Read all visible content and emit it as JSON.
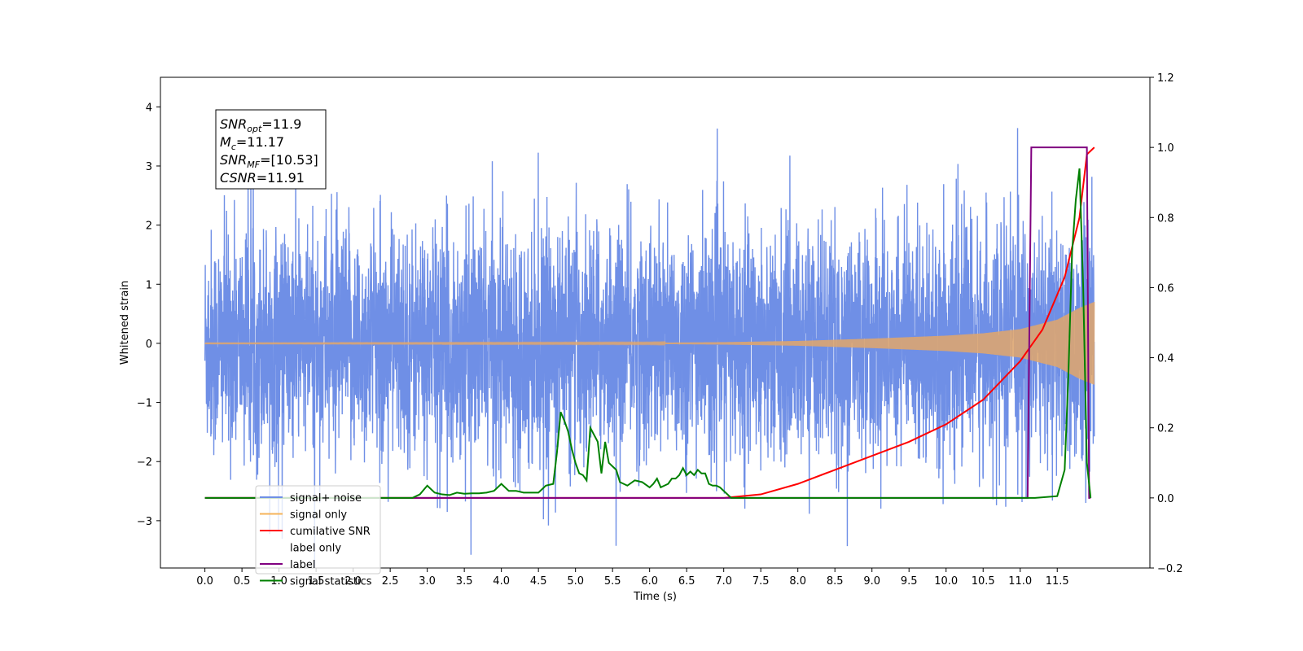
{
  "chart_data": {
    "type": "line",
    "title": "",
    "xlabel": "Time (s)",
    "ylabel": "Whitened strain",
    "y2label": "",
    "xlim": [
      -0.6,
      12.75
    ],
    "ylim": [
      -3.8,
      4.5
    ],
    "y2lim": [
      -0.2,
      1.2
    ],
    "xticks": [
      0.0,
      0.5,
      1.0,
      1.5,
      2.0,
      2.5,
      3.0,
      3.5,
      4.0,
      4.5,
      5.0,
      5.5,
      6.0,
      6.5,
      7.0,
      7.5,
      8.0,
      8.5,
      9.0,
      9.5,
      10.0,
      10.5,
      11.0,
      11.5
    ],
    "xtick_labels": [
      "0.0",
      "0.5",
      "1.0",
      "1.5",
      "2.0",
      "2.5",
      "3.0",
      "3.5",
      "4.0",
      "4.5",
      "5.0",
      "5.5",
      "6.0",
      "6.5",
      "7.0",
      "7.5",
      "8.0",
      "8.5",
      "9.0",
      "9.5",
      "10.0",
      "10.5",
      "11.0",
      "11.5"
    ],
    "yticks": [
      -3,
      -2,
      -1,
      0,
      1,
      2,
      3,
      4
    ],
    "ytick_labels": [
      "−3",
      "−2",
      "−1",
      "0",
      "1",
      "2",
      "3",
      "4"
    ],
    "y2ticks": [
      -0.2,
      0.0,
      0.2,
      0.4,
      0.6,
      0.8,
      1.0,
      1.2
    ],
    "y2tick_labels": [
      "−0.2",
      "0.0",
      "0.2",
      "0.4",
      "0.6",
      "0.8",
      "1.0",
      "1.2"
    ],
    "grid": false,
    "legend_position": "bottom-left",
    "annotation": [
      {
        "name": "SNR",
        "sub": "opt",
        "value": "=11.9"
      },
      {
        "name": "M",
        "sub": "c",
        "value": "=11.17"
      },
      {
        "name": "SNR",
        "sub": "MF",
        "value": "=[10.53]"
      },
      {
        "name": "CSNR",
        "sub": "",
        "value": "=11.91"
      }
    ],
    "series": [
      {
        "name": "signal+ noise",
        "axis": "left",
        "color": "#6f8fe6",
        "envelope": {
          "duration_s": 12.0,
          "noise_sigma": 0.95,
          "signal_amp_start": 0.005,
          "signal_amp_end": 0.7
        }
      },
      {
        "name": "signal only",
        "axis": "left",
        "color": "#f5b358",
        "envelope": {
          "duration_s": 12.0,
          "amp_points": [
            [
              0.0,
              0.005
            ],
            [
              6.0,
              0.01
            ],
            [
              7.0,
              0.02
            ],
            [
              8.0,
              0.04
            ],
            [
              9.0,
              0.08
            ],
            [
              10.0,
              0.13
            ],
            [
              10.5,
              0.17
            ],
            [
              11.0,
              0.24
            ],
            [
              11.5,
              0.4
            ],
            [
              11.8,
              0.6
            ],
            [
              12.0,
              0.7
            ]
          ]
        }
      },
      {
        "name": "cumilative SNR",
        "axis": "right",
        "color": "#ff0000",
        "x": [
          0.0,
          7.0,
          7.5,
          8.0,
          8.5,
          9.0,
          9.5,
          10.0,
          10.5,
          11.0,
          11.3,
          11.6,
          11.8,
          11.9,
          12.0
        ],
        "y": [
          0.0,
          0.0,
          0.01,
          0.04,
          0.08,
          0.12,
          0.16,
          0.21,
          0.28,
          0.39,
          0.48,
          0.63,
          0.8,
          0.98,
          1.0
        ]
      },
      {
        "name": "label only",
        "axis": "right",
        "color": "#cccccc",
        "x": [],
        "y": []
      },
      {
        "name": "label",
        "axis": "right",
        "color": "#800080",
        "x": [
          0.0,
          11.05,
          11.1,
          11.15,
          11.9,
          11.93,
          11.95
        ],
        "y": [
          0.0,
          0.0,
          0.0,
          1.0,
          1.0,
          0.0,
          0.0
        ]
      },
      {
        "name": "signal statistics",
        "axis": "right",
        "color": "#008000",
        "x": [
          0.0,
          2.8,
          2.9,
          3.0,
          3.1,
          3.2,
          3.3,
          3.4,
          3.5,
          3.6,
          3.7,
          3.8,
          3.9,
          4.0,
          4.1,
          4.2,
          4.3,
          4.4,
          4.5,
          4.6,
          4.7,
          4.75,
          4.8,
          4.85,
          4.9,
          4.95,
          5.0,
          5.05,
          5.1,
          5.15,
          5.2,
          5.25,
          5.3,
          5.35,
          5.4,
          5.45,
          5.5,
          5.55,
          5.6,
          5.7,
          5.8,
          5.9,
          6.0,
          6.05,
          6.1,
          6.15,
          6.2,
          6.25,
          6.3,
          6.35,
          6.4,
          6.45,
          6.5,
          6.55,
          6.6,
          6.65,
          6.7,
          6.75,
          6.8,
          6.85,
          6.9,
          6.95,
          7.0,
          7.1,
          7.2,
          7.3,
          11.2,
          11.5,
          11.6,
          11.65,
          11.7,
          11.75,
          11.8,
          11.85,
          11.9,
          11.95
        ],
        "y": [
          0.0,
          0.0,
          0.01,
          0.035,
          0.015,
          0.01,
          0.008,
          0.015,
          0.012,
          0.013,
          0.013,
          0.015,
          0.02,
          0.04,
          0.02,
          0.02,
          0.015,
          0.015,
          0.015,
          0.035,
          0.04,
          0.13,
          0.245,
          0.22,
          0.19,
          0.14,
          0.1,
          0.07,
          0.065,
          0.05,
          0.2,
          0.18,
          0.16,
          0.07,
          0.16,
          0.1,
          0.09,
          0.08,
          0.045,
          0.035,
          0.05,
          0.045,
          0.03,
          0.04,
          0.055,
          0.03,
          0.035,
          0.04,
          0.055,
          0.055,
          0.065,
          0.085,
          0.065,
          0.075,
          0.065,
          0.08,
          0.07,
          0.07,
          0.04,
          0.035,
          0.035,
          0.03,
          0.02,
          0.0,
          0.0,
          0.0,
          0.0,
          0.005,
          0.08,
          0.35,
          0.7,
          0.85,
          0.94,
          0.6,
          0.1,
          0.0
        ]
      }
    ]
  }
}
